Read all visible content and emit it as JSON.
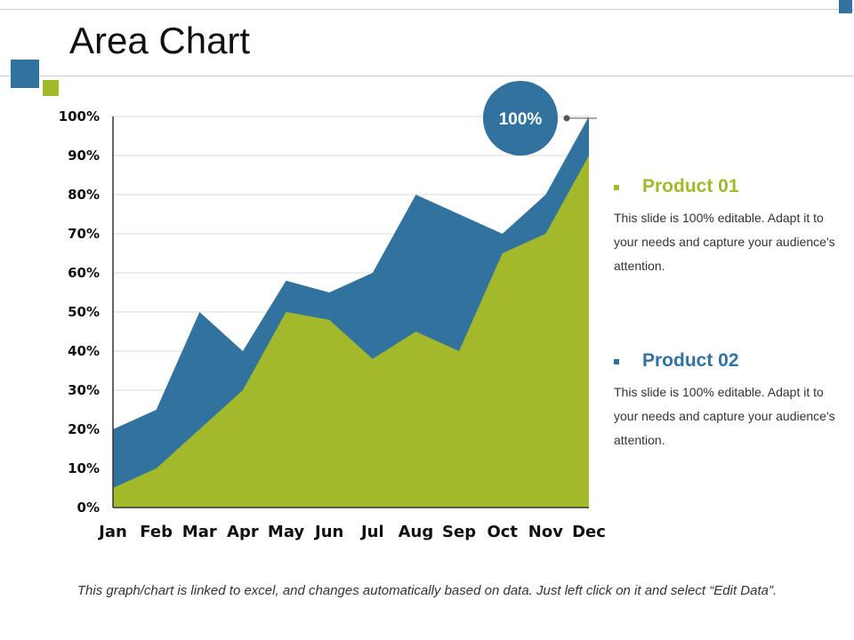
{
  "slide": {
    "title": "Area Chart",
    "footer_note": "This graph/chart is linked to excel, and changes automatically based on data. Just left click on it and select “Edit Data”."
  },
  "colors": {
    "blue": "#31739e",
    "green": "#a3b82b",
    "text_dark": "#111111",
    "line": "#cfcfcf"
  },
  "callout": {
    "text": "100%"
  },
  "legend": [
    {
      "name": "Product 01",
      "description": "This slide is 100% editable. Adapt it to your needs and capture your audience's attention.",
      "color": "#a3b82b"
    },
    {
      "name": "Product 02",
      "description": "This slide is 100% editable. Adapt it to your needs and capture your audience's attention.",
      "color": "#31739e"
    }
  ],
  "chart_data": {
    "type": "area",
    "categories": [
      "Jan",
      "Feb",
      "Mar",
      "Apr",
      "May",
      "Jun",
      "Jul",
      "Aug",
      "Sep",
      "Oct",
      "Nov",
      "Dec"
    ],
    "series": [
      {
        "name": "Product 02",
        "color": "#31739e",
        "values": [
          20,
          25,
          50,
          40,
          58,
          55,
          60,
          80,
          75,
          70,
          80,
          100
        ]
      },
      {
        "name": "Product 01",
        "color": "#a3b82b",
        "values": [
          5,
          10,
          20,
          30,
          50,
          48,
          38,
          45,
          40,
          65,
          70,
          90
        ]
      }
    ],
    "y_ticks": [
      "0%",
      "10%",
      "20%",
      "30%",
      "40%",
      "50%",
      "60%",
      "70%",
      "80%",
      "90%",
      "100%"
    ],
    "ylim": [
      0,
      100
    ],
    "grid": true
  }
}
